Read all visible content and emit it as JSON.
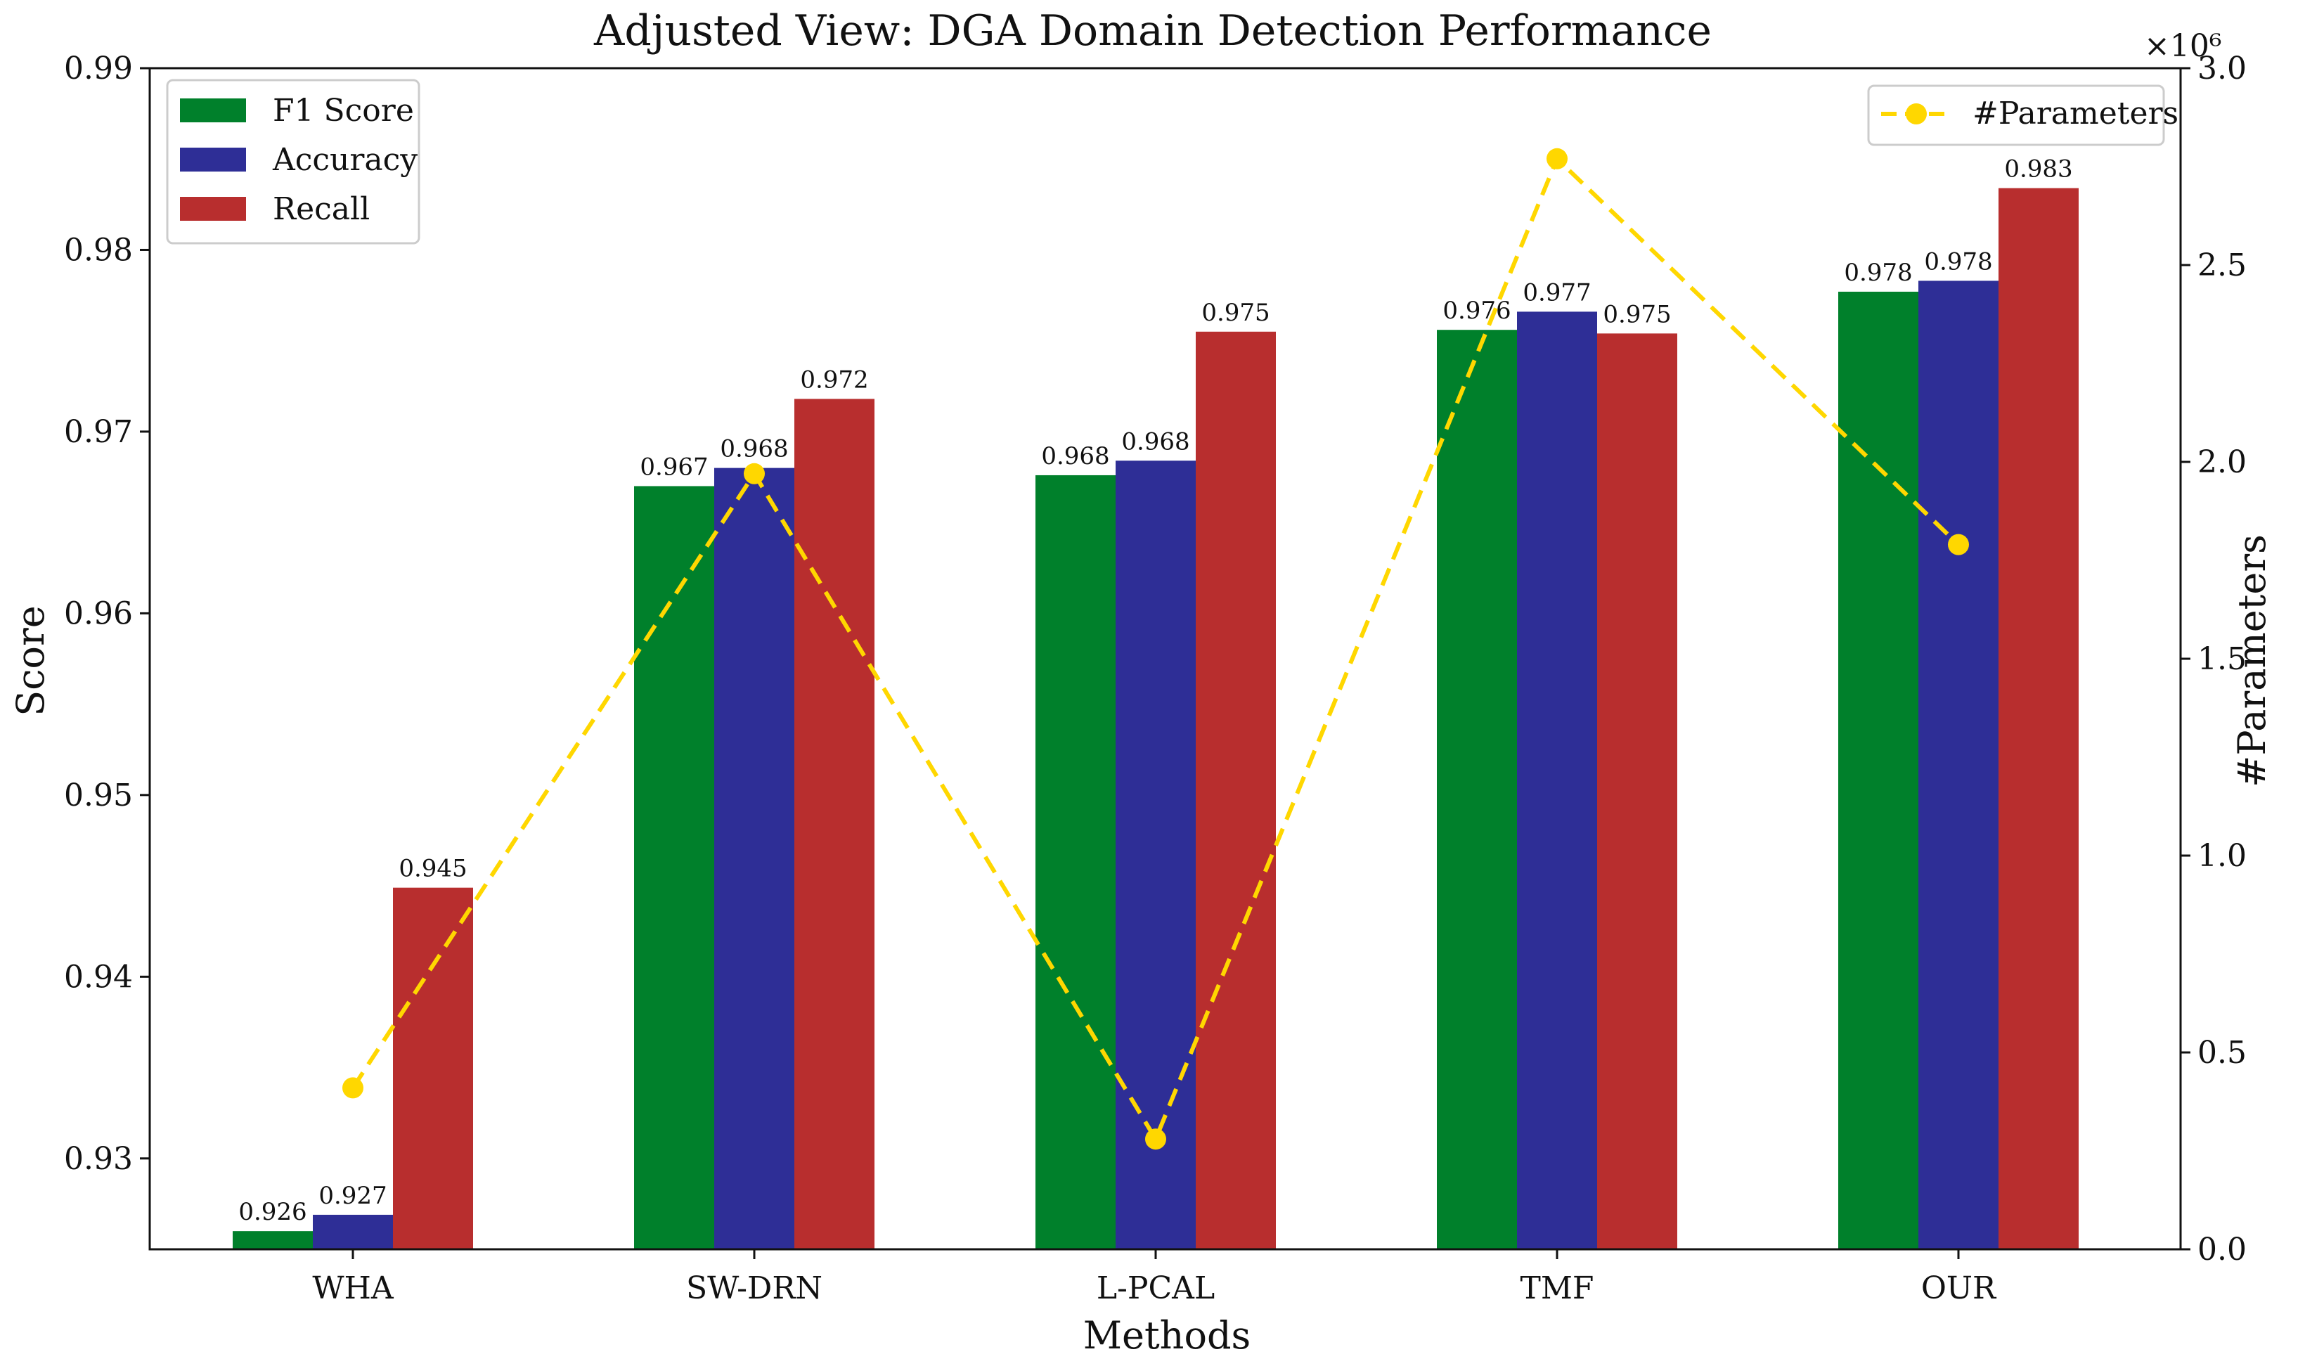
{
  "chart_data": {
    "type": "bar",
    "title": "Adjusted View: DGA Domain Detection Performance",
    "xlabel": "Methods",
    "ylabel": "Score",
    "y2label": "#Parameters",
    "y2_exponent_label": "×10⁶",
    "categories": [
      "WHA",
      "SW-DRN",
      "L-PCAL",
      "TMF",
      "OUR"
    ],
    "ylim": [
      0.925,
      0.99
    ],
    "yticks": [
      0.93,
      0.94,
      0.95,
      0.96,
      0.97,
      0.98,
      0.99
    ],
    "ytick_labels": [
      "0.93",
      "0.94",
      "0.95",
      "0.96",
      "0.97",
      "0.98",
      "0.99"
    ],
    "y2lim": [
      0,
      3.0
    ],
    "y2ticks": [
      0,
      0.5,
      1.0,
      1.5,
      2.0,
      2.5,
      3.0
    ],
    "y2tick_labels": [
      "0.0",
      "0.5",
      "1.0",
      "1.5",
      "2.0",
      "2.5",
      "3.0"
    ],
    "series": [
      {
        "name": "F1 Score",
        "color": "#00802b",
        "values": [
          0.926,
          0.967,
          0.9676,
          0.9756,
          0.9777
        ],
        "labels": [
          "0.926",
          "0.967",
          "0.968",
          "0.976",
          "0.978"
        ]
      },
      {
        "name": "Accuracy",
        "color": "#2e2e96",
        "values": [
          0.9269,
          0.968,
          0.9684,
          0.9766,
          0.9783
        ],
        "labels": [
          "0.927",
          "0.968",
          "0.968",
          "0.977",
          "0.978"
        ]
      },
      {
        "name": "Recall",
        "color": "#b82e2e",
        "values": [
          0.9449,
          0.9718,
          0.9755,
          0.9754,
          0.9834
        ],
        "labels": [
          "0.945",
          "0.972",
          "0.975",
          "0.975",
          "0.983"
        ]
      }
    ],
    "line_series": {
      "name": "#Parameters",
      "color": "#ffd700",
      "style": "dashed",
      "marker": "circle",
      "values": [
        0.41,
        1.97,
        0.28,
        2.77,
        1.79
      ]
    },
    "legend_bars_position": "top-left",
    "legend_line_position": "top-right",
    "grid": false
  }
}
